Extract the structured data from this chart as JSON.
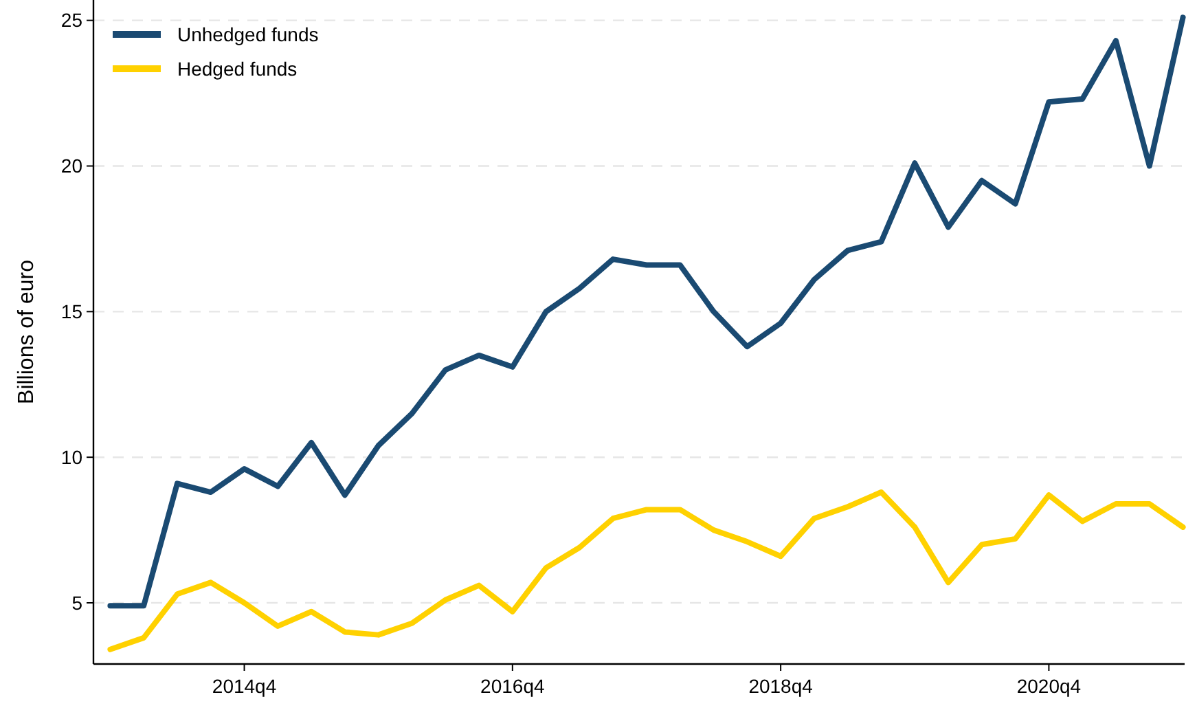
{
  "chart_data": {
    "type": "line",
    "ylabel": "Billions of euro",
    "categories": [
      null,
      null,
      null,
      null,
      "2014q4",
      null,
      null,
      null,
      null,
      null,
      null,
      null,
      "2016q4",
      null,
      null,
      null,
      null,
      null,
      null,
      null,
      "2018q4",
      null,
      null,
      null,
      null,
      null,
      null,
      null,
      "2020q4",
      null,
      null,
      null,
      null
    ],
    "series": [
      {
        "name": "Unhedged funds",
        "color": "#1a4a72",
        "values": [
          4.9,
          4.9,
          9.1,
          8.8,
          9.6,
          9.0,
          10.5,
          8.7,
          10.4,
          11.5,
          13.0,
          13.5,
          13.1,
          15.0,
          15.8,
          16.8,
          16.6,
          16.6,
          15.0,
          13.8,
          14.6,
          16.1,
          17.1,
          17.4,
          20.1,
          17.9,
          19.5,
          18.7,
          22.2,
          22.3,
          24.3,
          20.0,
          25.1
        ]
      },
      {
        "name": "Hedged funds",
        "color": "#ffd100",
        "values": [
          3.4,
          3.8,
          5.3,
          5.7,
          5.0,
          4.2,
          4.7,
          4.0,
          3.9,
          4.3,
          5.1,
          5.6,
          4.7,
          6.2,
          6.9,
          7.9,
          8.2,
          8.2,
          7.5,
          7.1,
          6.6,
          7.9,
          8.3,
          8.8,
          7.6,
          5.7,
          7.0,
          7.2,
          8.7,
          7.8,
          8.4,
          8.4,
          7.6
        ]
      }
    ],
    "ylim": [
      2.9,
      25.7
    ],
    "yticks": [
      5,
      10,
      15,
      20,
      25
    ],
    "grid": "y",
    "legend": "top left",
    "line_style": "solid",
    "marker": "none"
  }
}
